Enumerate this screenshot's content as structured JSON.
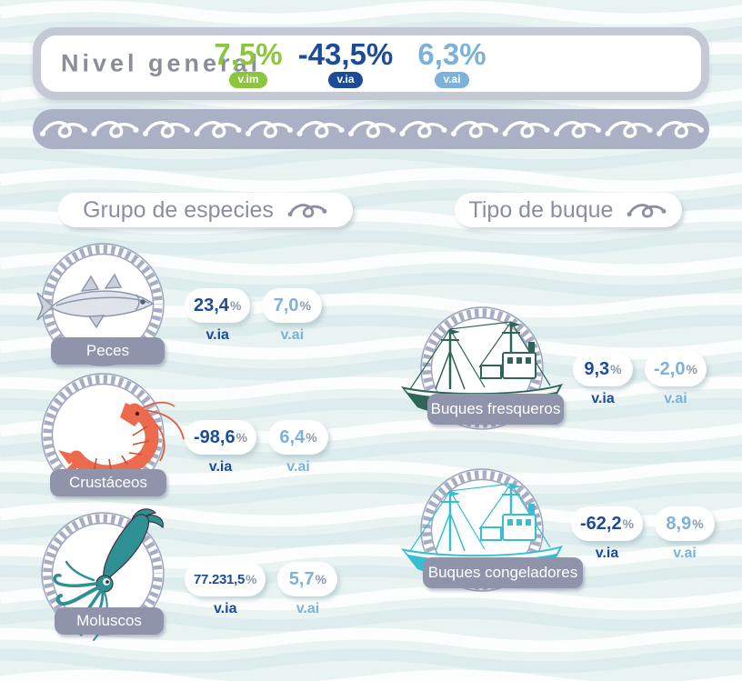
{
  "header": {
    "title": "Nivel general",
    "metrics": [
      {
        "value": "7,5%",
        "badge": "v.im"
      },
      {
        "value": "-43,5%",
        "badge": "v.ia"
      },
      {
        "value": "6,3%",
        "badge": "v.ai"
      }
    ]
  },
  "band": {
    "knot_count": 13
  },
  "sections": [
    {
      "title": "Grupo de especies",
      "items": [
        {
          "label": "Peces",
          "icon": "fish-icon",
          "via_value": "23,4",
          "vai_value": "7,0"
        },
        {
          "label": "Crustáceos",
          "icon": "shrimp-icon",
          "via_value": "-98,6",
          "vai_value": "6,4"
        },
        {
          "label": "Moluscos",
          "icon": "squid-icon",
          "via_value": "77.231,5",
          "vai_value": "5,7"
        }
      ]
    },
    {
      "title": "Tipo de buque",
      "items": [
        {
          "label": "Buques fresqueros",
          "icon": "fresh-trawler-icon",
          "via_value": "9,3",
          "vai_value": "-2,0"
        },
        {
          "label": "Buques congeladores",
          "icon": "freezer-trawler-icon",
          "via_value": "-62,2",
          "vai_value": "8,9"
        }
      ]
    }
  ],
  "labels": {
    "percent": "%",
    "via": "v.ia",
    "vai": "v.ai"
  },
  "colors": {
    "bg": "#e8f3f2",
    "framegray": "#c5c9d5",
    "titlegray": "#8a8e9a",
    "sectiontext": "#8a8fa0",
    "green": "#8cc63f",
    "dkblue": "#1c4b99",
    "ltblue": "#7cb2da",
    "pctgray": "#8d99a6",
    "band": "#abb1c5",
    "labelbg": "#8f94aa",
    "shrimp": "#ee6a4e",
    "squid": "#2f9093",
    "boatfresh": "#2e6557",
    "boatfreezer": "#38bdd2"
  },
  "chart_data": {
    "type": "table",
    "title": "Nivel general",
    "units": "percent",
    "general": [
      {
        "label": "v.im",
        "value": 7.5
      },
      {
        "label": "v.ia",
        "value": -43.5
      },
      {
        "label": "v.ai",
        "value": 6.3
      }
    ],
    "groups": [
      {
        "section": "Grupo de especies",
        "category": "Peces",
        "v_ia": 23.4,
        "v_ai": 7.0
      },
      {
        "section": "Grupo de especies",
        "category": "Crustáceos",
        "v_ia": -98.6,
        "v_ai": 6.4
      },
      {
        "section": "Grupo de especies",
        "category": "Moluscos",
        "v_ia": 77231.5,
        "v_ai": 5.7
      },
      {
        "section": "Tipo de buque",
        "category": "Buques fresqueros",
        "v_ia": 9.3,
        "v_ai": -2.0
      },
      {
        "section": "Tipo de buque",
        "category": "Buques congeladores",
        "v_ia": -62.2,
        "v_ai": 8.9
      }
    ]
  }
}
